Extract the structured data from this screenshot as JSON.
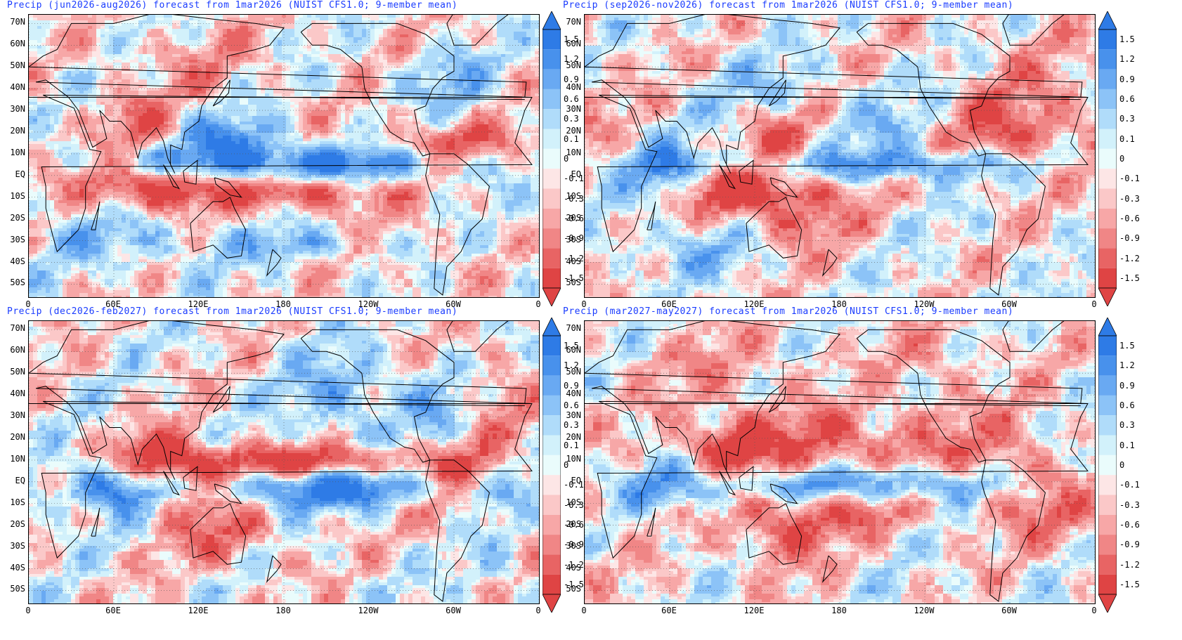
{
  "panels": [
    {
      "id": "jja",
      "title": "Precip (jun2026-aug2026) forecast from 1mar2026 (NUIST CFS1.0; 9-member mean)",
      "pattern": "el-nino-summer"
    },
    {
      "id": "son",
      "title": "Precip (sep2026-nov2026) forecast from 1mar2026 (NUIST CFS1.0; 9-member mean)",
      "pattern": "el-nino-autumn"
    },
    {
      "id": "djf",
      "title": "Precip (dec2026-feb2027) forecast from 1mar2026 (NUIST CFS1.0; 9-member mean)",
      "pattern": "el-nino-winter"
    },
    {
      "id": "mam",
      "title": "Precip (mar2027-may2027) forecast from 1mar2026 (NUIST CFS1.0; 9-member mean)",
      "pattern": "el-nino-spring"
    }
  ],
  "lat_labels": [
    "70N",
    "60N",
    "50N",
    "40N",
    "30N",
    "20N",
    "10N",
    "EQ",
    "10S",
    "20S",
    "30S",
    "40S",
    "50S"
  ],
  "lon_labels": [
    "0",
    "60E",
    "120E",
    "180",
    "120W",
    "60W",
    "0"
  ],
  "colorbar": {
    "levels": [
      "1.5",
      "1.2",
      "0.9",
      "0.6",
      "0.3",
      "0.1",
      "0",
      "-0.1",
      "-0.3",
      "-0.6",
      "-0.9",
      "-1.2",
      "-1.5"
    ],
    "colors": [
      "#2e7be6",
      "#4891ec",
      "#69a9f2",
      "#8cc3f7",
      "#b0dcfa",
      "#d2f1fb",
      "#eafcfc",
      "#fde6e6",
      "#fbc8c8",
      "#f7a7a7",
      "#f08686",
      "#e86464",
      "#df4444"
    ]
  },
  "colors": {
    "title": "#1a3cff",
    "coast": "#000000",
    "grid": "#555555"
  }
}
